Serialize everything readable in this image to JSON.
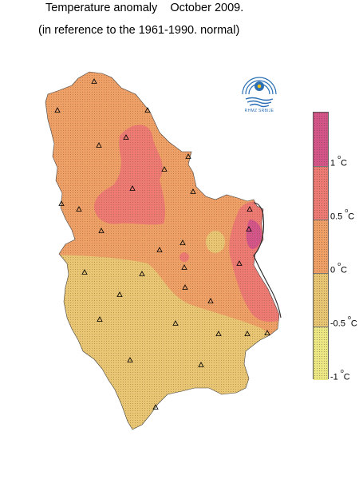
{
  "title": {
    "line1_a": "Temperature anomaly",
    "line1_b": "October 2009.",
    "line2": "(in reference to the 1961-1990. normal)"
  },
  "logo": {
    "caption": "RHMZ SRBIJE"
  },
  "legend": {
    "classes": [
      {
        "range": "-1 to -0.5",
        "color": "#ece884"
      },
      {
        "range": "-0.5 to 0",
        "color": "#e8c673"
      },
      {
        "range": "0 to 0.5",
        "color": "#efa066"
      },
      {
        "range": "0.5 to 1",
        "color": "#ee7a74"
      },
      {
        "range": "> 1",
        "color": "#d45589"
      }
    ],
    "labels": [
      "1",
      "0.5",
      "0",
      "-0.5",
      "-1"
    ],
    "unit": "C",
    "degree": "o"
  },
  "colors": {
    "cold": "#ece884",
    "cool": "#e8c673",
    "warm": "#efa066",
    "warmer": "#ee7a74",
    "hot": "#d45589"
  },
  "stations_marker": "triangle"
}
